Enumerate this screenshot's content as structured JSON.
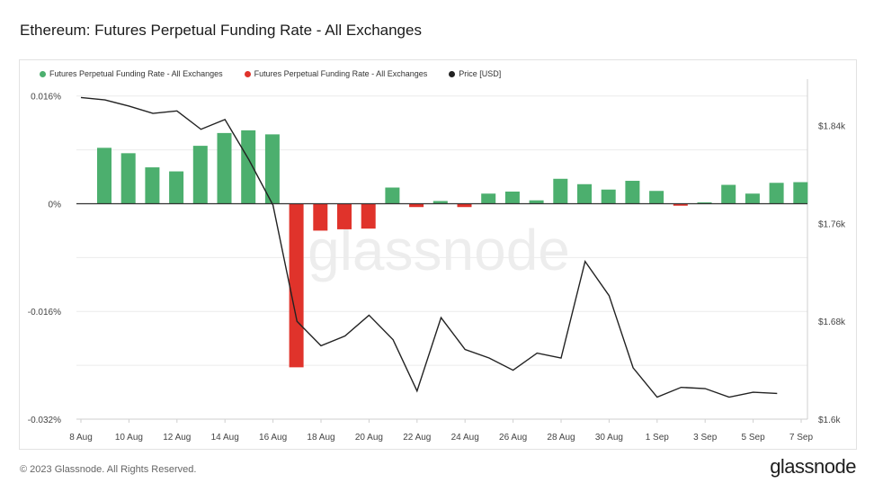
{
  "title": "Ethereum: Futures Perpetual Funding Rate - All Exchanges",
  "footer": "© 2023 Glassnode. All Rights Reserved.",
  "brand": "glassnode",
  "watermark": "glassnode",
  "colors": {
    "positive": "#4caf6e",
    "negative": "#e0332b",
    "price": "#222222"
  },
  "legend": [
    {
      "label": "Futures Perpetual Funding Rate - All Exchanges",
      "color": "#4caf6e"
    },
    {
      "label": "Futures Perpetual Funding Rate - All Exchanges",
      "color": "#e0332b"
    },
    {
      "label": "Price [USD]",
      "color": "#222222"
    }
  ],
  "chart_data": {
    "type": "bar",
    "title": "Ethereum: Futures Perpetual Funding Rate - All Exchanges",
    "x_ticks": [
      "8 Aug",
      "10 Aug",
      "12 Aug",
      "14 Aug",
      "16 Aug",
      "18 Aug",
      "20 Aug",
      "22 Aug",
      "24 Aug",
      "26 Aug",
      "28 Aug",
      "30 Aug",
      "1 Sep",
      "3 Sep",
      "5 Sep",
      "7 Sep"
    ],
    "y_left": {
      "ticks": [
        0.016,
        0,
        -0.016,
        -0.032
      ],
      "tick_labels": [
        "0.016%",
        "0%",
        "-0.016%",
        "-0.032%"
      ],
      "range": [
        -0.032,
        0.0185
      ]
    },
    "y_right": {
      "ticks": [
        1840,
        1760,
        1680,
        1600
      ],
      "tick_labels": [
        "$1.84k",
        "$1.76k",
        "$1.68k",
        "$1.6k"
      ],
      "range": [
        1600,
        1878
      ]
    },
    "series": [
      {
        "name": "Futures Perpetual Funding Rate - All Exchanges",
        "unit": "%",
        "dates": [
          "8 Aug",
          "9 Aug",
          "10 Aug",
          "11 Aug",
          "12 Aug",
          "13 Aug",
          "14 Aug",
          "15 Aug",
          "16 Aug",
          "17 Aug",
          "18 Aug",
          "19 Aug",
          "20 Aug",
          "21 Aug",
          "22 Aug",
          "23 Aug",
          "24 Aug",
          "25 Aug",
          "26 Aug",
          "27 Aug",
          "28 Aug",
          "29 Aug",
          "30 Aug",
          "31 Aug",
          "1 Sep",
          "2 Sep",
          "3 Sep",
          "4 Sep",
          "5 Sep",
          "6 Sep"
        ],
        "values": [
          0.0083,
          0.0075,
          0.0054,
          0.0048,
          0.0086,
          0.0105,
          0.0109,
          0.0103,
          -0.0243,
          -0.004,
          -0.0038,
          -0.0037,
          0.0024,
          -0.0005,
          0.0004,
          -0.0005,
          0.0015,
          0.0018,
          0.0005,
          0.0037,
          0.0029,
          0.0021,
          0.0034,
          0.0019,
          -0.0003,
          0.0002,
          0.0028,
          0.0015,
          0.0031,
          0.0032
        ]
      },
      {
        "name": "Price [USD]",
        "unit": "USD",
        "dates": [
          "8 Aug",
          "9 Aug",
          "10 Aug",
          "11 Aug",
          "12 Aug",
          "13 Aug",
          "14 Aug",
          "15 Aug",
          "16 Aug",
          "17 Aug",
          "18 Aug",
          "19 Aug",
          "20 Aug",
          "21 Aug",
          "22 Aug",
          "23 Aug",
          "24 Aug",
          "25 Aug",
          "26 Aug",
          "27 Aug",
          "28 Aug",
          "29 Aug",
          "30 Aug",
          "31 Aug",
          "1 Sep",
          "2 Sep",
          "3 Sep",
          "4 Sep",
          "5 Sep",
          "6 Sep"
        ],
        "values": [
          1863,
          1861,
          1856,
          1850,
          1852,
          1837,
          1845,
          1812,
          1775,
          1680,
          1660,
          1668,
          1685,
          1665,
          1623,
          1683,
          1657,
          1650,
          1640,
          1654,
          1650,
          1729,
          1701,
          1642,
          1618,
          1626,
          1625,
          1618,
          1622,
          1621
        ]
      }
    ],
    "legend_position": "top-left",
    "grid": true
  }
}
